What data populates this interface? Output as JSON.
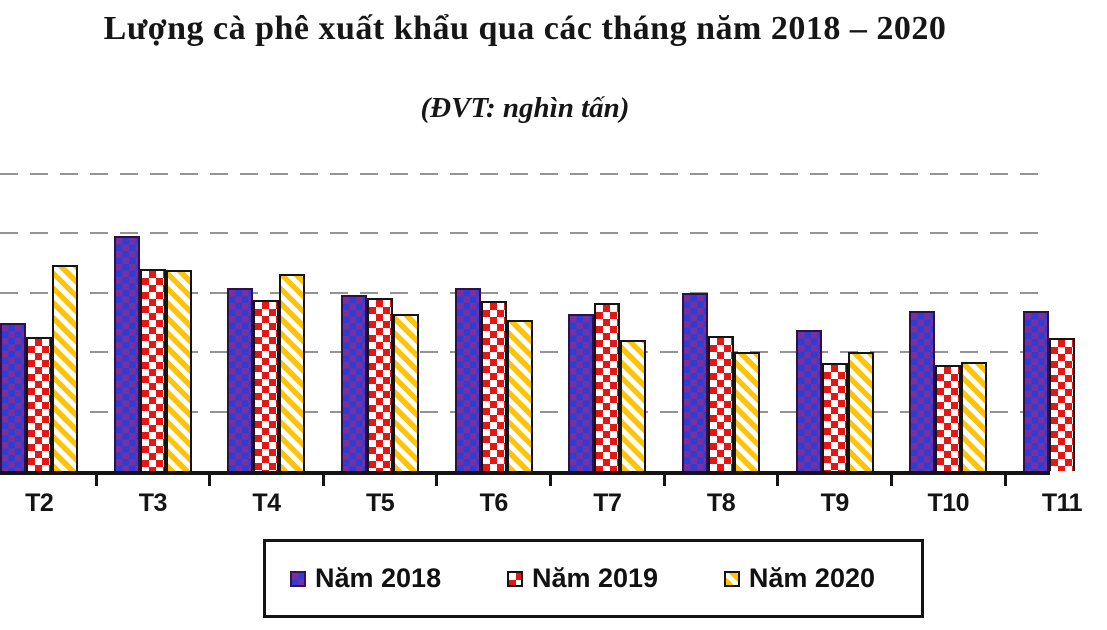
{
  "title": "Lượng cà phê xuất khẩu qua các tháng năm 2018 – 2020",
  "subtitle": "(ĐVT: nghìn tấn)",
  "chart_data": {
    "type": "bar",
    "unit": "nghìn tấn",
    "categories": [
      "T2",
      "T3",
      "T4",
      "T5",
      "T6",
      "T7",
      "T8",
      "T9",
      "T10",
      "T11"
    ],
    "series": [
      {
        "name": "Năm 2018",
        "pattern": "blue-checker-on-purple",
        "colors": {
          "bg": "#7b2f9e",
          "fg": "#2b3fd4",
          "accent": "#b0289a"
        },
        "values": [
          125,
          198,
          154,
          148,
          154,
          132,
          150,
          119,
          135,
          135
        ]
      },
      {
        "name": "Năm 2019",
        "pattern": "red-checker-on-white",
        "colors": {
          "bg": "#ffffff",
          "fg": "#e81515",
          "accent": "#e81515"
        },
        "values": [
          113,
          170,
          144,
          146,
          143,
          141,
          114,
          91,
          89,
          112
        ]
      },
      {
        "name": "Năm 2020",
        "pattern": "gold-diagonal-on-white",
        "colors": {
          "bg": "#ffffff",
          "fg": "#ffc408",
          "accent": "#ffc408"
        },
        "values": [
          173,
          169,
          166,
          132,
          127,
          110,
          100,
          100,
          92,
          null
        ]
      }
    ],
    "ylim": [
      0,
      262
    ],
    "gridline_step": 50,
    "grid": "horizontal-dashed",
    "y_axis_labels_visible": false,
    "legend_position": "bottom",
    "crop": "plot cropped at left, right and top edges; first 2018 bar and T11 group partially cut off",
    "palette": {
      "grid": "#949494",
      "axis": "#141414",
      "text": "#141414"
    }
  }
}
